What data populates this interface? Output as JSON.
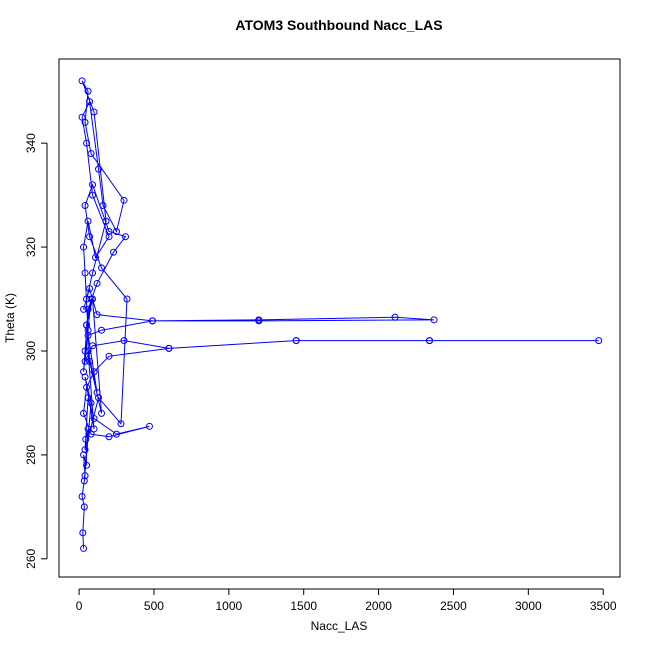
{
  "chart_data": {
    "type": "line",
    "title": "ATOM3 Southbound Nacc_LAS",
    "xlabel": "Nacc_LAS",
    "ylabel": "Theta (K)",
    "color": "#0000ff",
    "x": [
      30,
      25,
      35,
      20,
      40,
      30,
      50,
      45,
      60,
      35,
      80,
      40,
      100,
      60,
      120,
      50,
      90,
      150,
      70,
      40,
      30,
      60,
      110,
      200,
      90,
      50,
      20,
      70,
      130,
      160,
      250,
      300,
      80,
      40,
      60,
      20,
      100,
      180,
      90,
      50,
      30,
      70,
      120,
      490,
      1200,
      2110,
      2370,
      1200,
      490,
      150,
      60,
      40,
      90,
      300,
      600,
      1450,
      2340,
      3470,
      2340,
      1450,
      600,
      200,
      100,
      50,
      30,
      80,
      200,
      470,
      250,
      100,
      60,
      40,
      130,
      280,
      320,
      150,
      70,
      40,
      90,
      200,
      310,
      230,
      120,
      60,
      40,
      30,
      60,
      80,
      50
    ],
    "values": [
      262,
      265,
      270,
      272,
      276,
      280,
      278,
      283,
      285,
      275,
      290,
      295,
      285,
      300,
      292,
      305,
      310,
      288,
      298,
      315,
      320,
      325,
      318,
      322,
      330,
      340,
      345,
      348,
      335,
      328,
      323,
      329,
      338,
      344,
      350,
      352,
      346,
      325,
      315,
      310,
      308,
      312,
      307,
      305.8,
      306,
      306.5,
      306,
      305.8,
      305.8,
      304,
      303,
      298,
      301,
      302,
      300.5,
      302,
      302,
      302,
      302,
      302,
      300.5,
      299,
      296,
      293,
      288,
      284,
      283.5,
      285.5,
      284,
      287,
      291,
      281,
      291,
      286,
      310,
      316,
      322,
      328,
      332,
      323,
      322,
      319,
      313,
      308,
      300,
      296,
      304,
      310,
      305
    ],
    "xlim": [
      -134,
      3612
    ],
    "ylim": [
      256.5,
      356.2
    ],
    "xticks": [
      0,
      500,
      1000,
      1500,
      2000,
      2500,
      3000,
      3500
    ],
    "yticks": [
      260,
      280,
      300,
      320,
      340
    ]
  }
}
